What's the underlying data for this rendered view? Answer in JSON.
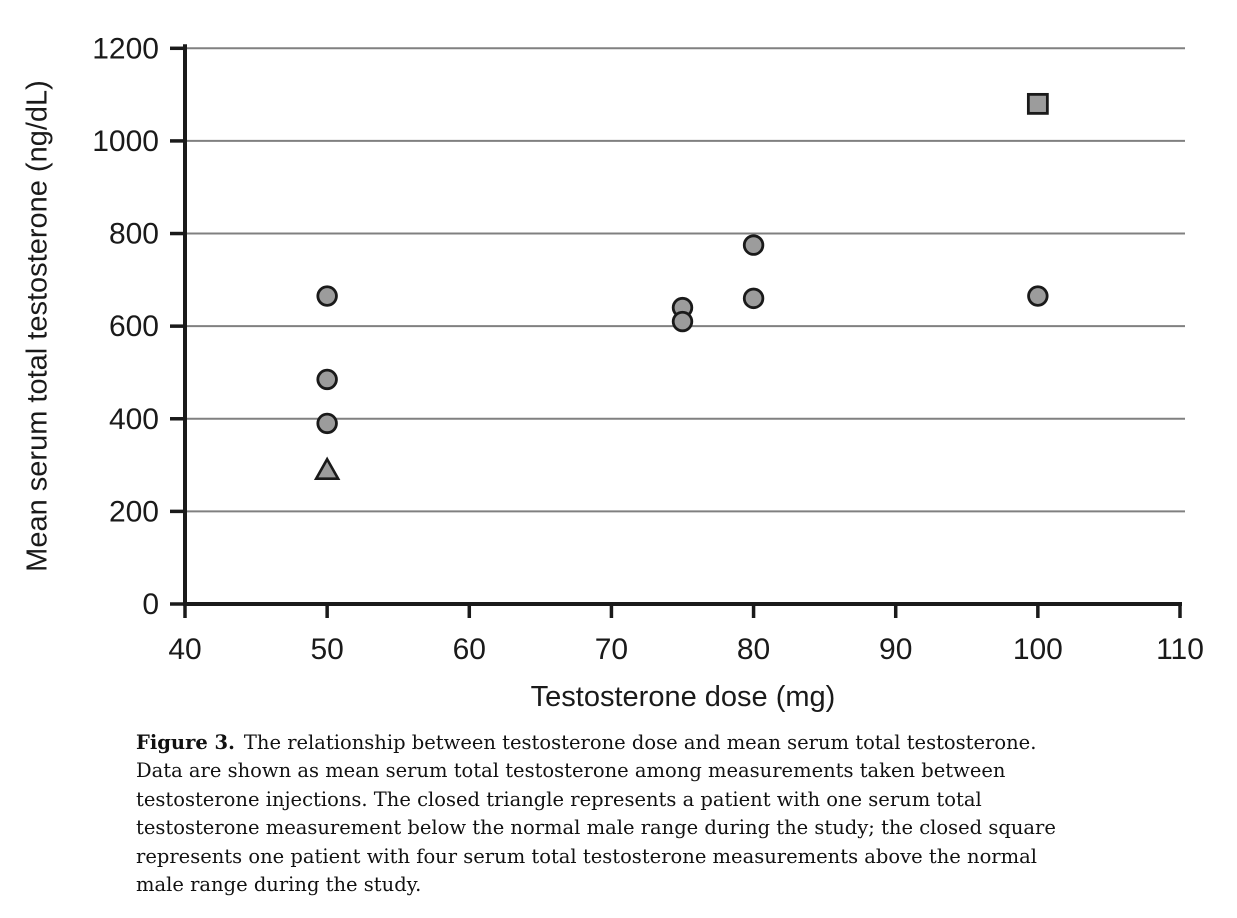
{
  "caption": {
    "figure_label": "Figure 3.",
    "line1_rest": "The relationship between testosterone dose and mean serum total testosterone.",
    "lines": [
      "Data are shown as mean serum total testosterone among measurements taken between",
      "testosterone injections. The closed triangle represents a patient with one serum total",
      "testosterone measurement below the normal male range during the study; the closed square",
      "represents one patient with four serum total testosterone measurements above the normal",
      "male range during the study."
    ]
  },
  "chart_data": {
    "type": "scatter",
    "title": "",
    "xlabel": "Testosterone dose (mg)",
    "ylabel": "Mean serum total testosterone (ng/dL)",
    "xlim": [
      40,
      110
    ],
    "ylim": [
      0,
      1200
    ],
    "x_ticks": [
      40,
      50,
      60,
      70,
      80,
      90,
      100,
      110
    ],
    "y_ticks": [
      0,
      200,
      400,
      600,
      800,
      1000,
      1200
    ],
    "grid": "horizontal-only",
    "legend": "none",
    "series": [
      {
        "name": "mean-serum-total-testosterone",
        "marker": "circle",
        "points": [
          [
            50,
            665
          ],
          [
            50,
            485
          ],
          [
            50,
            390
          ],
          [
            75,
            640
          ],
          [
            75,
            610
          ],
          [
            80,
            775
          ],
          [
            80,
            660
          ],
          [
            100,
            665
          ]
        ]
      },
      {
        "name": "patient-one-measurement-below-normal-male-range",
        "marker": "triangle",
        "points": [
          [
            50,
            290
          ]
        ]
      },
      {
        "name": "patient-four-measurements-above-normal-male-range",
        "marker": "square",
        "points": [
          [
            100,
            1080
          ]
        ]
      }
    ],
    "colors": {
      "marker_fill": "#9c9c9c",
      "marker_stroke": "#1a1a1a",
      "gridline": "#808080",
      "axis": "#1a1a1a",
      "text": "#1a1a1a"
    }
  }
}
